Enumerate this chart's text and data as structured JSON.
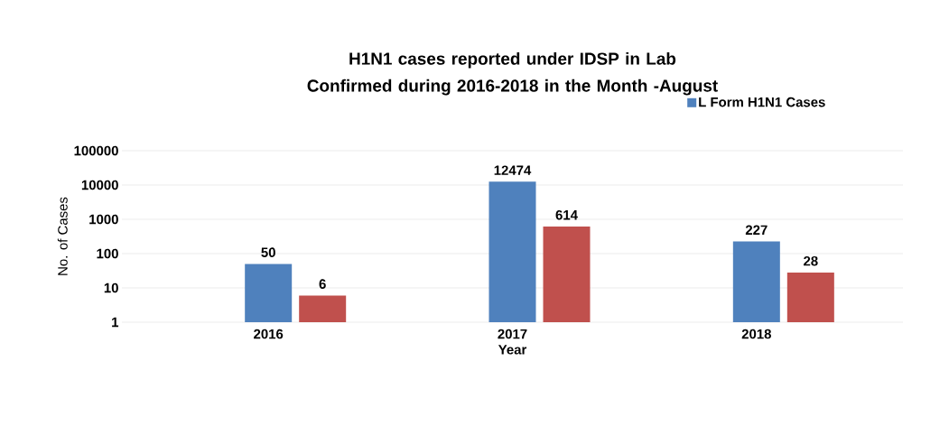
{
  "chart_data": {
    "type": "bar",
    "title": "H1N1 cases reported under IDSP in Lab Confirmed during 2016-2018 in the Month -August",
    "categories": [
      "2016",
      "2017",
      "2018"
    ],
    "series": [
      {
        "name": "L Form H1N1 Cases",
        "color": "#4f81bd",
        "values": [
          50,
          12474,
          227
        ]
      },
      {
        "color": "#c0504d",
        "values": [
          6,
          614,
          28
        ]
      }
    ],
    "xlabel": "Year",
    "ylabel": "No. of Cases",
    "log": true,
    "ylim": [
      1,
      100000
    ],
    "yticks": [
      1,
      10,
      100,
      1000,
      10000,
      100000
    ],
    "grid": "y",
    "legend": "top right",
    "data_labels": true
  }
}
